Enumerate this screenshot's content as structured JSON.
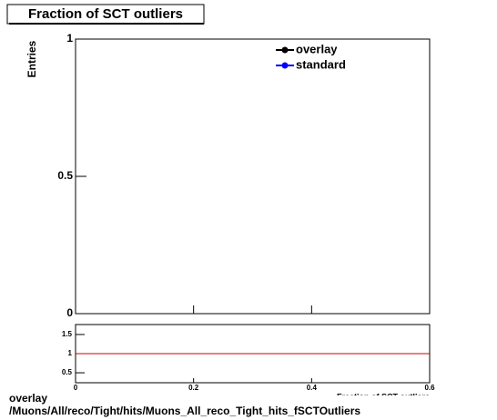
{
  "chart_data": {
    "type": "line",
    "title": "Fraction of SCT outliers",
    "y_label": "Entries",
    "x_label": "Fraction of SCT outliers",
    "series": [
      {
        "name": "overlay",
        "color": "#000000",
        "values": []
      },
      {
        "name": "standard",
        "color": "#0000ff",
        "values": []
      }
    ],
    "xlim": [
      0,
      0.6
    ],
    "xticks": [
      0,
      0.2,
      0.4,
      0.6
    ],
    "ylim": [
      0,
      1
    ],
    "yticks": [
      0,
      0.5,
      1
    ],
    "ratio": {
      "ylim": [
        0.24,
        1.76
      ],
      "yticks": [
        0.5,
        1,
        1.5
      ],
      "reference": 1,
      "reference_color": "#cc0000"
    },
    "footer": [
      "overlay",
      "/Muons/All/reco/Tight/hits/Muons_All_reco_Tight_hits_fSCTOutliers"
    ]
  }
}
